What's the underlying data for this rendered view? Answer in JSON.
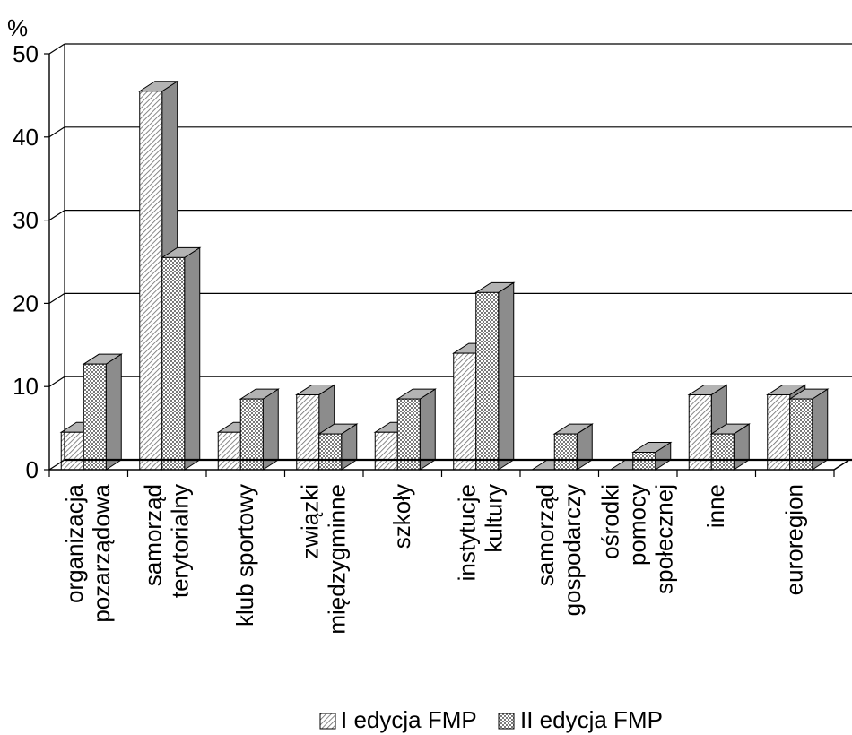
{
  "chart_data": {
    "type": "bar",
    "ylabel": "%",
    "ylim": [
      0,
      50
    ],
    "yticks": [
      "0",
      "10",
      "20",
      "30",
      "40",
      "50"
    ],
    "categories": [
      [
        "organizacja",
        "pozarządowa"
      ],
      [
        "samorząd",
        "terytorialny"
      ],
      [
        "klub sportowy"
      ],
      [
        "związki",
        "międzygminne"
      ],
      [
        "szkoły"
      ],
      [
        "instytucje",
        "kultury"
      ],
      [
        "samorząd",
        "gospodarczy"
      ],
      [
        "ośrodki",
        "pomocy",
        "społecznej"
      ],
      [
        "inne"
      ],
      [
        "euroregion"
      ]
    ],
    "series": [
      {
        "name": "I edycja FMP",
        "values": [
          4.5,
          45.5,
          4.5,
          9,
          4.5,
          14,
          0,
          0,
          9,
          9
        ]
      },
      {
        "name": "II edycja FMP",
        "values": [
          12.7,
          25.5,
          8.5,
          4.3,
          8.5,
          21.3,
          4.3,
          2.1,
          4.3,
          8.5
        ]
      }
    ],
    "grid": true,
    "legend_position": "bottom-center",
    "colors": {
      "series1": "#d9d9d9",
      "series2": "#cfcfcf",
      "side": "#8c8c8c",
      "top": "#b3b3b3"
    }
  }
}
